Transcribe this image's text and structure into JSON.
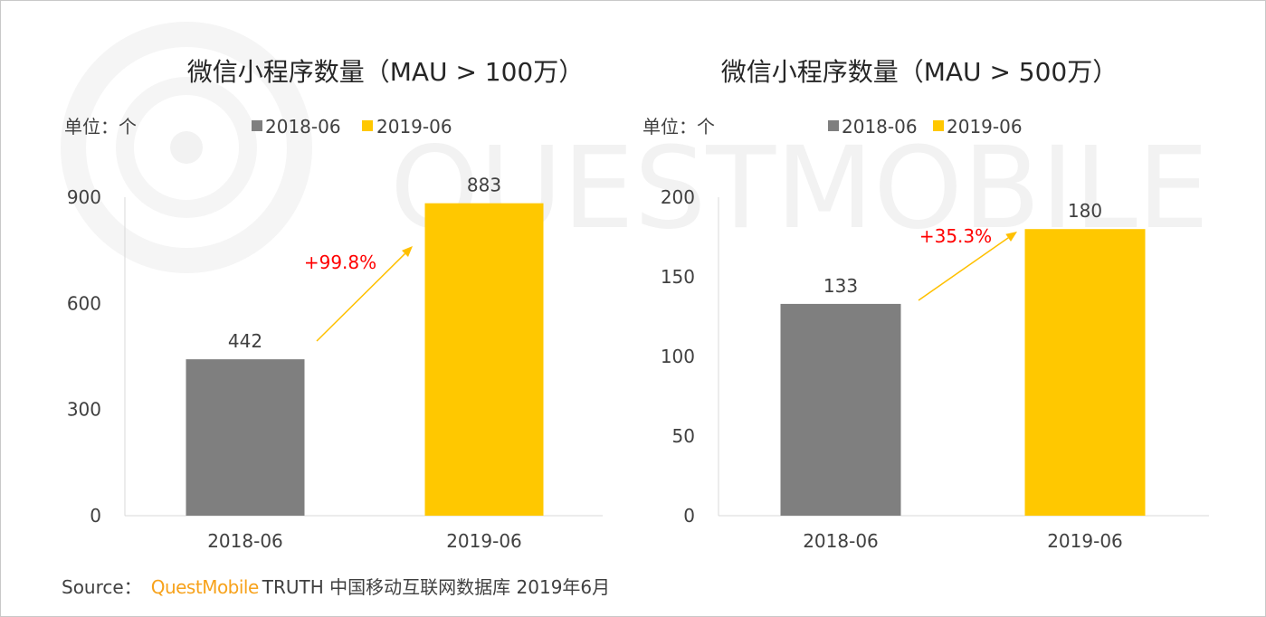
{
  "watermark": {
    "text": "QUESTMOBILE",
    "icon": "questmobile-logo-icon"
  },
  "chart_data": [
    {
      "type": "bar",
      "title": "微信小程序数量（MAU > 100万）",
      "unit_label": "单位：个",
      "categories": [
        "2018-06",
        "2019-06"
      ],
      "values": [
        442,
        883
      ],
      "bar_colors": [
        "#7F7F7F",
        "#FFC800"
      ],
      "legend": [
        {
          "label": "2018-06",
          "color": "#7F7F7F"
        },
        {
          "label": "2019-06",
          "color": "#FFC800"
        }
      ],
      "legend_position": "top",
      "ylim": [
        0,
        900
      ],
      "yticks": [
        0,
        300,
        600,
        900
      ],
      "grid": false,
      "annotation": {
        "text": "+99.8%",
        "color": "#FF0000",
        "arrow_color": "#FFC000"
      }
    },
    {
      "type": "bar",
      "title": "微信小程序数量（MAU > 500万）",
      "unit_label": "单位：个",
      "categories": [
        "2018-06",
        "2019-06"
      ],
      "values": [
        133,
        180
      ],
      "bar_colors": [
        "#7F7F7F",
        "#FFC800"
      ],
      "legend": [
        {
          "label": "2018-06",
          "color": "#7F7F7F"
        },
        {
          "label": "2019-06",
          "color": "#FFC800"
        }
      ],
      "legend_position": "top",
      "ylim": [
        0,
        200
      ],
      "yticks": [
        0,
        50,
        100,
        150,
        200
      ],
      "grid": false,
      "annotation": {
        "text": "+35.3%",
        "color": "#FF0000",
        "arrow_color": "#FFC000"
      }
    }
  ],
  "source": {
    "label": "Source：",
    "brand": "QuestMobile",
    "brand_color": "#F7A21B",
    "text": "TRUTH 中国移动互联网数据库 2019年6月"
  }
}
